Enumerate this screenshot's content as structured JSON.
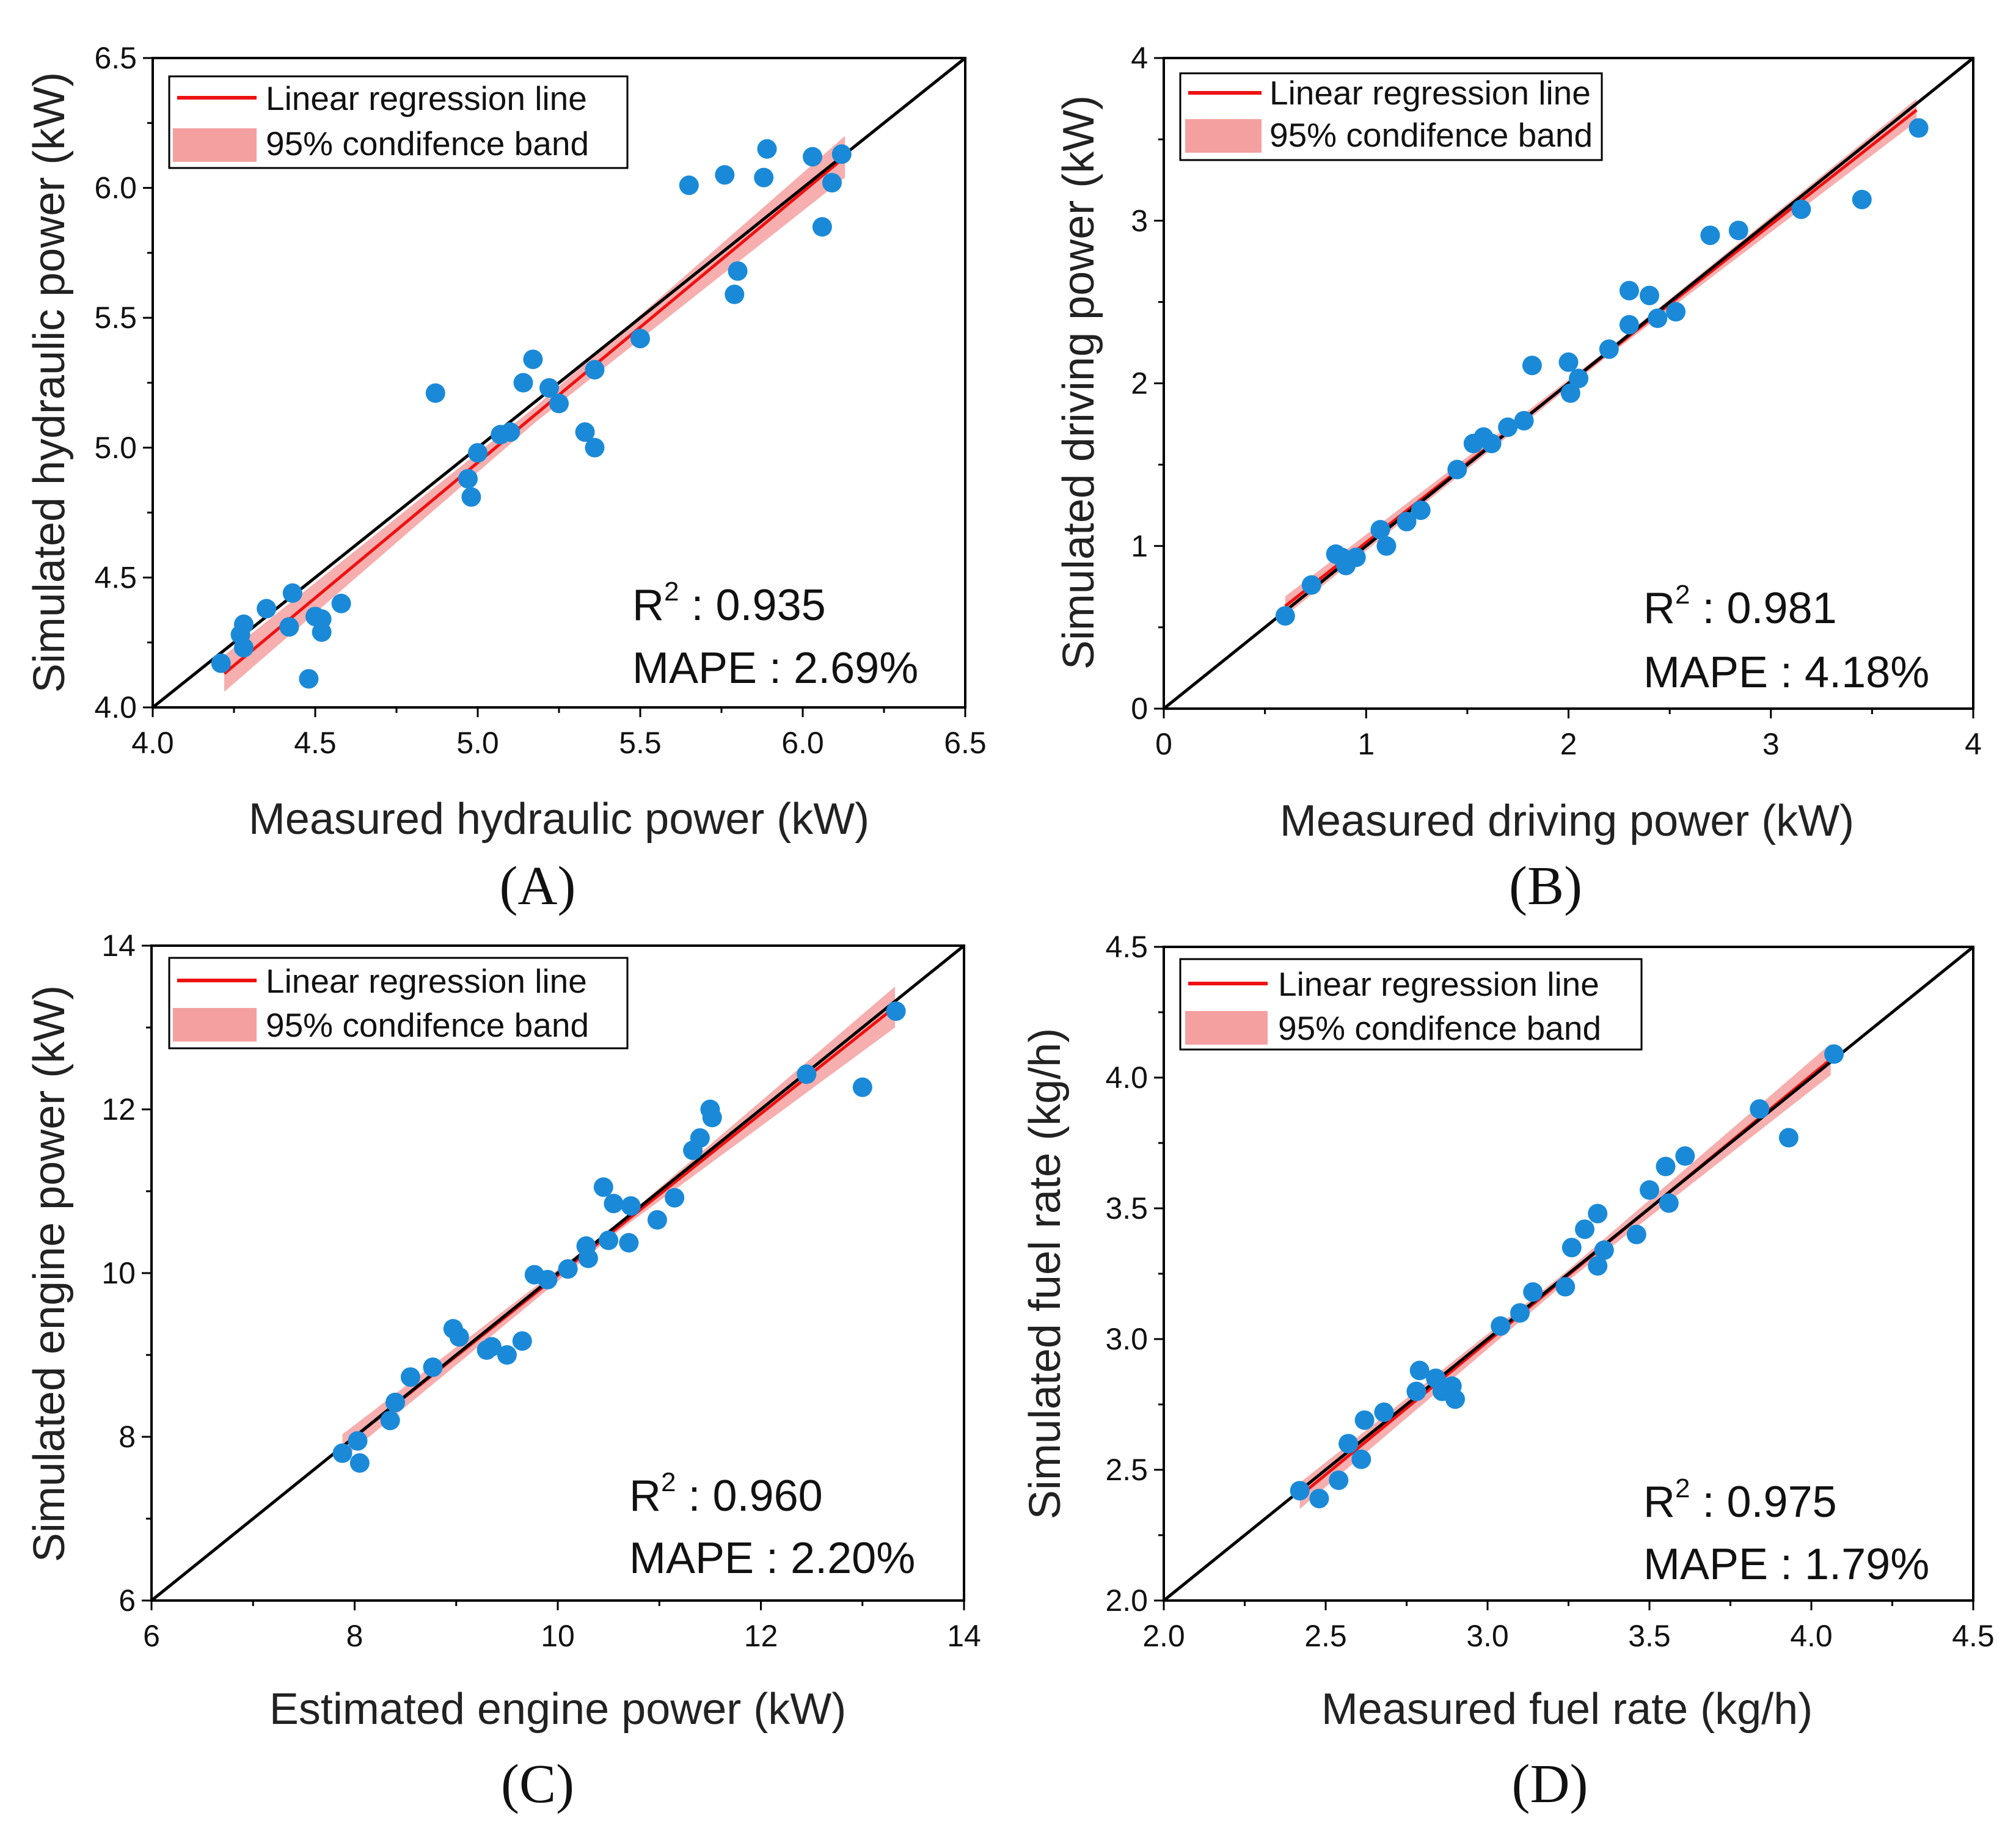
{
  "legend": {
    "line_label": "Linear regression line",
    "band_label": "95% condifence band"
  },
  "colors": {
    "points": "#1a8ad8",
    "regression": "#ee1111",
    "band": "#f4a0a0",
    "identity": "#000000"
  },
  "chart_data": [
    {
      "type": "scatter",
      "panel": "(A)",
      "xlabel": "Measured hydraulic power (kW)",
      "ylabel": "Simulated hydraulic power (kW)",
      "xlim": [
        4.0,
        6.5
      ],
      "ylim": [
        4.0,
        6.5
      ],
      "xticks": [
        "4.0",
        "4.5",
        "5.0",
        "5.5",
        "6.0",
        "6.5"
      ],
      "yticks": [
        "4.0",
        "4.5",
        "5.0",
        "5.5",
        "6.0",
        "6.5"
      ],
      "r2_label": "R",
      "r2_value": " : 0.935",
      "mape": "MAPE : 2.69%",
      "regression": {
        "x": [
          4.22,
          6.13
        ],
        "y": [
          4.13,
          6.12
        ]
      },
      "band_halfwidth": [
        0.07,
        0.03,
        0.08
      ],
      "points": [
        [
          4.21,
          4.17
        ],
        [
          4.27,
          4.28
        ],
        [
          4.28,
          4.32
        ],
        [
          4.28,
          4.23
        ],
        [
          4.35,
          4.38
        ],
        [
          4.42,
          4.31
        ],
        [
          4.43,
          4.44
        ],
        [
          4.48,
          4.11
        ],
        [
          4.5,
          4.35
        ],
        [
          4.52,
          4.29
        ],
        [
          4.52,
          4.34
        ],
        [
          4.58,
          4.4
        ],
        [
          4.87,
          5.21
        ],
        [
          4.97,
          4.88
        ],
        [
          4.98,
          4.81
        ],
        [
          5.0,
          4.98
        ],
        [
          5.07,
          5.05
        ],
        [
          5.1,
          5.06
        ],
        [
          5.14,
          5.25
        ],
        [
          5.17,
          5.34
        ],
        [
          5.22,
          5.23
        ],
        [
          5.25,
          5.17
        ],
        [
          5.33,
          5.06
        ],
        [
          5.36,
          5.3
        ],
        [
          5.36,
          5.0
        ],
        [
          5.5,
          5.42
        ],
        [
          5.65,
          6.01
        ],
        [
          5.76,
          6.05
        ],
        [
          5.79,
          5.59
        ],
        [
          5.8,
          5.68
        ],
        [
          5.88,
          6.04
        ],
        [
          5.89,
          6.15
        ],
        [
          6.03,
          6.12
        ],
        [
          6.06,
          5.85
        ],
        [
          6.09,
          6.02
        ],
        [
          6.12,
          6.13
        ]
      ]
    },
    {
      "type": "scatter",
      "panel": "(B)",
      "xlabel": "Measured driving power (kW)",
      "ylabel": "Simulated driving power (kW)",
      "xlim": [
        0,
        4
      ],
      "ylim": [
        0,
        4
      ],
      "xticks": [
        "0",
        "1",
        "2",
        "3",
        "4"
      ],
      "yticks": [
        "0",
        "1",
        "2",
        "3",
        "4"
      ],
      "r2_label": "R",
      "r2_value": " : 0.981",
      "mape": "MAPE : 4.18%",
      "regression": {
        "x": [
          0.6,
          3.72
        ],
        "y": [
          0.63,
          3.68
        ]
      },
      "band_halfwidth": [
        0.06,
        0.02,
        0.07
      ],
      "points": [
        [
          0.6,
          0.57
        ],
        [
          0.73,
          0.76
        ],
        [
          0.85,
          0.95
        ],
        [
          0.88,
          0.93
        ],
        [
          0.9,
          0.88
        ],
        [
          0.95,
          0.93
        ],
        [
          1.07,
          1.1
        ],
        [
          1.1,
          1.0
        ],
        [
          1.2,
          1.15
        ],
        [
          1.27,
          1.22
        ],
        [
          1.45,
          1.47
        ],
        [
          1.53,
          1.63
        ],
        [
          1.58,
          1.67
        ],
        [
          1.62,
          1.63
        ],
        [
          1.7,
          1.73
        ],
        [
          1.78,
          1.77
        ],
        [
          1.82,
          2.11
        ],
        [
          2.0,
          2.13
        ],
        [
          2.01,
          1.94
        ],
        [
          2.05,
          2.03
        ],
        [
          2.2,
          2.21
        ],
        [
          2.3,
          2.36
        ],
        [
          2.3,
          2.57
        ],
        [
          2.4,
          2.54
        ],
        [
          2.44,
          2.4
        ],
        [
          2.53,
          2.44
        ],
        [
          2.7,
          2.91
        ],
        [
          2.84,
          2.94
        ],
        [
          3.15,
          3.07
        ],
        [
          3.45,
          3.13
        ],
        [
          3.73,
          3.57
        ]
      ]
    },
    {
      "type": "scatter",
      "panel": "(C)",
      "xlabel": "Estimated engine power (kW)",
      "ylabel": "Simulated engine power (kW)",
      "xlim": [
        6,
        14
      ],
      "ylim": [
        6,
        14
      ],
      "xticks": [
        "6",
        "8",
        "10",
        "12",
        "14"
      ],
      "yticks": [
        "6",
        "8",
        "10",
        "12",
        "14"
      ],
      "r2_label": "R",
      "r2_value": " : 0.960",
      "mape": "MAPE : 2.20%",
      "regression": {
        "x": [
          7.88,
          13.32
        ],
        "y": [
          7.88,
          13.25
        ]
      },
      "band_halfwidth": [
        0.15,
        0.05,
        0.25
      ],
      "points": [
        [
          7.88,
          7.8
        ],
        [
          8.03,
          7.95
        ],
        [
          8.05,
          7.68
        ],
        [
          8.35,
          8.2
        ],
        [
          8.4,
          8.42
        ],
        [
          8.55,
          8.73
        ],
        [
          8.77,
          8.85
        ],
        [
          8.97,
          9.32
        ],
        [
          9.03,
          9.22
        ],
        [
          9.3,
          9.06
        ],
        [
          9.35,
          9.1
        ],
        [
          9.5,
          9.0
        ],
        [
          9.65,
          9.17
        ],
        [
          9.77,
          9.98
        ],
        [
          9.9,
          9.92
        ],
        [
          10.1,
          10.05
        ],
        [
          10.28,
          10.33
        ],
        [
          10.3,
          10.18
        ],
        [
          10.45,
          11.05
        ],
        [
          10.5,
          10.4
        ],
        [
          10.55,
          10.85
        ],
        [
          10.7,
          10.37
        ],
        [
          10.72,
          10.82
        ],
        [
          10.98,
          10.65
        ],
        [
          11.15,
          10.92
        ],
        [
          11.33,
          11.5
        ],
        [
          11.4,
          11.65
        ],
        [
          11.5,
          12.0
        ],
        [
          11.52,
          11.9
        ],
        [
          12.45,
          12.43
        ],
        [
          13.0,
          12.27
        ],
        [
          13.33,
          13.2
        ]
      ]
    },
    {
      "type": "scatter",
      "panel": "(D)",
      "xlabel": "Measured fuel rate (kg/h)",
      "ylabel": "Simulated fuel rate (kg/h)",
      "xlim": [
        2.0,
        4.5
      ],
      "ylim": [
        2.0,
        4.5
      ],
      "xticks": [
        "2.0",
        "2.5",
        "3.0",
        "3.5",
        "4.0",
        "4.5"
      ],
      "yticks": [
        "2.0",
        "2.5",
        "3.0",
        "3.5",
        "4.0",
        "4.5"
      ],
      "r2_label": "R",
      "r2_value": " : 0.975",
      "mape": "MAPE : 1.79%",
      "regression": {
        "x": [
          2.42,
          4.06
        ],
        "y": [
          2.4,
          4.07
        ]
      },
      "band_halfwidth": [
        0.05,
        0.02,
        0.06
      ],
      "points": [
        [
          2.42,
          2.42
        ],
        [
          2.48,
          2.39
        ],
        [
          2.54,
          2.46
        ],
        [
          2.57,
          2.6
        ],
        [
          2.61,
          2.54
        ],
        [
          2.62,
          2.69
        ],
        [
          2.68,
          2.72
        ],
        [
          2.78,
          2.8
        ],
        [
          2.79,
          2.88
        ],
        [
          2.84,
          2.85
        ],
        [
          2.86,
          2.8
        ],
        [
          2.89,
          2.82
        ],
        [
          2.9,
          2.77
        ],
        [
          3.04,
          3.05
        ],
        [
          3.1,
          3.1
        ],
        [
          3.14,
          3.18
        ],
        [
          3.24,
          3.2
        ],
        [
          3.26,
          3.35
        ],
        [
          3.3,
          3.42
        ],
        [
          3.34,
          3.48
        ],
        [
          3.34,
          3.28
        ],
        [
          3.36,
          3.34
        ],
        [
          3.46,
          3.4
        ],
        [
          3.5,
          3.57
        ],
        [
          3.55,
          3.66
        ],
        [
          3.56,
          3.52
        ],
        [
          3.61,
          3.7
        ],
        [
          3.84,
          3.88
        ],
        [
          3.93,
          3.77
        ],
        [
          4.07,
          4.09
        ]
      ]
    }
  ]
}
